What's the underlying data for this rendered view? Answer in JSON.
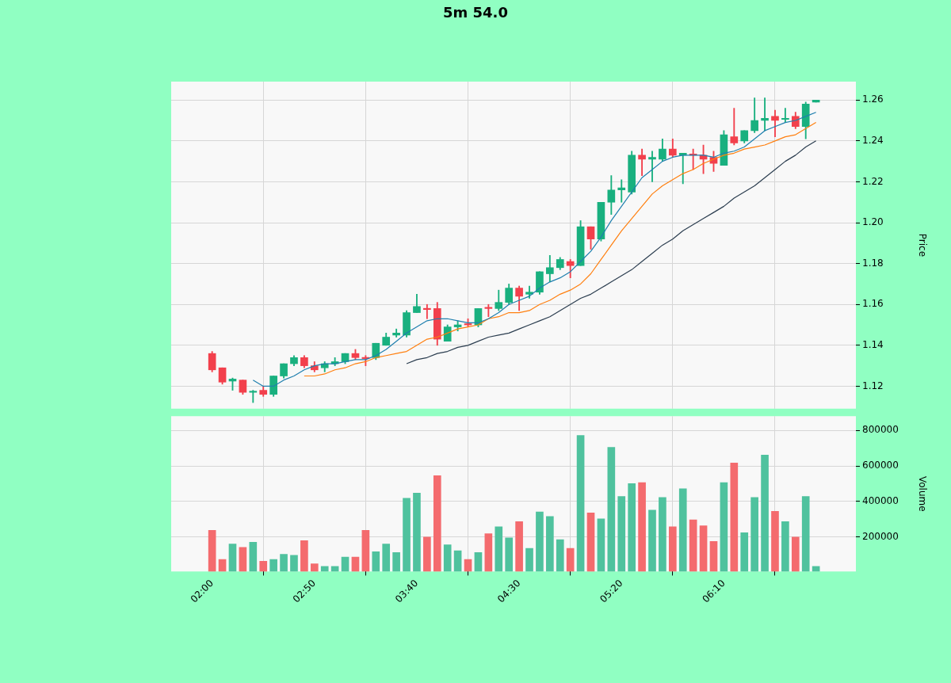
{
  "chart_data": [
    {
      "type": "candlestick",
      "title": "5m 54.0",
      "ylabel": "Price",
      "grid": true,
      "tick_labels": "y",
      "categories": [
        null,
        null,
        null,
        null,
        null,
        null,
        null,
        null,
        null,
        null,
        null,
        null,
        null,
        null,
        null,
        null,
        null,
        null,
        null,
        null,
        null,
        null,
        null,
        null,
        null,
        null,
        null,
        null,
        null,
        null,
        null,
        null,
        null,
        null,
        null,
        null,
        null,
        null,
        null,
        null,
        null,
        null,
        null,
        null,
        null,
        null,
        null,
        null,
        null,
        null,
        null,
        null,
        null,
        null,
        null,
        null,
        null,
        null,
        null,
        null
      ],
      "ylim": [
        1.109,
        1.269
      ],
      "yticks": [
        1.12,
        1.14,
        1.16,
        1.18,
        {
          "value": 1.2,
          "label": "1.20"
        },
        1.22,
        1.24,
        1.26
      ],
      "series": [
        {
          "type": "line",
          "color": "#1f7fae",
          "values": [
            null,
            null,
            null,
            null,
            1.123,
            1.12,
            1.12,
            1.123,
            1.125,
            1.128,
            1.13,
            1.131,
            1.131,
            1.132,
            1.133,
            1.133,
            1.135,
            1.138,
            1.142,
            1.146,
            1.149,
            1.152,
            1.153,
            1.153,
            1.152,
            1.151,
            1.151,
            1.153,
            1.156,
            1.16,
            1.162,
            1.164,
            1.168,
            1.171,
            1.173,
            1.176,
            1.181,
            1.186,
            1.193,
            1.201,
            1.208,
            1.215,
            1.222,
            1.226,
            1.23,
            1.232,
            1.233,
            1.233,
            1.233,
            1.232,
            1.234,
            1.235,
            1.237,
            1.241,
            1.245,
            1.247,
            1.249,
            1.25,
            1.252,
            1.254
          ]
        },
        {
          "type": "line",
          "color": "#ff7f0e",
          "values": [
            null,
            null,
            null,
            null,
            null,
            null,
            null,
            null,
            null,
            1.125,
            1.125,
            1.126,
            1.128,
            1.129,
            1.131,
            1.132,
            1.134,
            1.135,
            1.136,
            1.137,
            1.14,
            1.143,
            1.144,
            1.146,
            1.148,
            1.149,
            1.15,
            1.153,
            1.154,
            1.156,
            1.156,
            1.157,
            1.16,
            1.162,
            1.165,
            1.167,
            1.17,
            1.175,
            1.182,
            1.189,
            1.196,
            1.202,
            1.208,
            1.214,
            1.218,
            1.221,
            1.224,
            1.226,
            1.229,
            1.231,
            1.233,
            1.234,
            1.236,
            1.237,
            1.238,
            1.24,
            1.242,
            1.243,
            1.246,
            1.249
          ]
        },
        {
          "type": "line",
          "color": "#2c3e50",
          "values": [
            null,
            null,
            null,
            null,
            null,
            null,
            null,
            null,
            null,
            null,
            null,
            null,
            null,
            null,
            null,
            null,
            null,
            null,
            null,
            1.131,
            1.133,
            1.134,
            1.136,
            1.137,
            1.139,
            1.14,
            1.142,
            1.144,
            1.145,
            1.146,
            1.148,
            1.15,
            1.152,
            1.154,
            1.157,
            1.16,
            1.163,
            1.165,
            1.168,
            1.171,
            1.174,
            1.177,
            1.181,
            1.185,
            1.189,
            1.192,
            1.196,
            1.199,
            1.202,
            1.205,
            1.208,
            1.212,
            1.215,
            1.218,
            1.222,
            1.226,
            1.23,
            1.233,
            1.237,
            1.24
          ]
        },
        {
          "type": "candlestick",
          "ohlc": [
            [
              1.136,
              1.137,
              1.127,
              1.128
            ],
            [
              1.129,
              1.129,
              1.121,
              1.122
            ],
            [
              1.1225,
              1.124,
              1.118,
              1.1235
            ],
            [
              1.123,
              1.123,
              1.116,
              1.117
            ],
            [
              1.117,
              1.118,
              1.112,
              1.1175
            ],
            [
              1.118,
              1.12,
              1.115,
              1.116
            ],
            [
              1.116,
              1.125,
              1.115,
              1.125
            ],
            [
              1.125,
              1.131,
              1.124,
              1.131
            ],
            [
              1.131,
              1.135,
              1.13,
              1.134
            ],
            [
              1.134,
              1.135,
              1.129,
              1.13
            ],
            [
              1.13,
              1.132,
              1.127,
              1.128
            ],
            [
              1.129,
              1.132,
              1.127,
              1.131
            ],
            [
              1.131,
              1.134,
              1.13,
              1.132
            ],
            [
              1.132,
              1.136,
              1.131,
              1.136
            ],
            [
              1.136,
              1.138,
              1.133,
              1.134
            ],
            [
              1.134,
              1.135,
              1.13,
              1.1335
            ],
            [
              1.134,
              1.141,
              1.133,
              1.141
            ],
            [
              1.14,
              1.146,
              1.14,
              1.144
            ],
            [
              1.145,
              1.148,
              1.144,
              1.146
            ],
            [
              1.145,
              1.157,
              1.144,
              1.156
            ],
            [
              1.156,
              1.165,
              1.156,
              1.159
            ],
            [
              1.158,
              1.16,
              1.153,
              1.1575
            ],
            [
              1.158,
              1.161,
              1.14,
              1.143
            ],
            [
              1.142,
              1.15,
              1.142,
              1.149
            ],
            [
              1.149,
              1.152,
              1.147,
              1.15
            ],
            [
              1.1505,
              1.153,
              1.149,
              1.15
            ],
            [
              1.15,
              1.158,
              1.149,
              1.158
            ],
            [
              1.1585,
              1.16,
              1.154,
              1.158
            ],
            [
              1.158,
              1.167,
              1.157,
              1.161
            ],
            [
              1.161,
              1.17,
              1.16,
              1.168
            ],
            [
              1.168,
              1.169,
              1.157,
              1.164
            ],
            [
              1.165,
              1.169,
              1.163,
              1.166
            ],
            [
              1.166,
              1.176,
              1.165,
              1.176
            ],
            [
              1.175,
              1.184,
              1.171,
              1.178
            ],
            [
              1.178,
              1.183,
              1.177,
              1.182
            ],
            [
              1.181,
              1.182,
              1.173,
              1.179
            ],
            [
              1.179,
              1.201,
              1.179,
              1.198
            ],
            [
              1.198,
              1.198,
              1.187,
              1.192
            ],
            [
              1.192,
              1.21,
              1.191,
              1.21
            ],
            [
              1.21,
              1.223,
              1.204,
              1.216
            ],
            [
              1.216,
              1.221,
              1.21,
              1.217
            ],
            [
              1.215,
              1.235,
              1.214,
              1.233
            ],
            [
              1.233,
              1.236,
              1.223,
              1.231
            ],
            [
              1.231,
              1.235,
              1.22,
              1.232
            ],
            [
              1.231,
              1.241,
              1.23,
              1.236
            ],
            [
              1.236,
              1.241,
              1.232,
              1.233
            ],
            [
              1.233,
              1.234,
              1.219,
              1.234
            ],
            [
              1.2333,
              1.236,
              1.226,
              1.233
            ],
            [
              1.233,
              1.238,
              1.224,
              1.231
            ],
            [
              1.232,
              1.235,
              1.225,
              1.229
            ],
            [
              1.228,
              1.245,
              1.228,
              1.243
            ],
            [
              1.242,
              1.256,
              1.238,
              1.239
            ],
            [
              1.24,
              1.245,
              1.239,
              1.245
            ],
            [
              1.245,
              1.261,
              1.244,
              1.25
            ],
            [
              1.25,
              1.261,
              1.245,
              1.251
            ],
            [
              1.252,
              1.255,
              1.242,
              1.25
            ],
            [
              1.2505,
              1.256,
              1.249,
              1.251
            ],
            [
              1.252,
              1.254,
              1.246,
              1.247
            ],
            [
              1.247,
              1.259,
              1.241,
              1.258
            ],
            [
              1.259,
              1.26,
              1.259,
              1.26
            ]
          ],
          "colors": [
            "#f2404c",
            "#f2404c",
            "#19b07f",
            "#f2404c",
            "#19b07f",
            "#f2404c",
            "#19b07f",
            "#19b07f",
            "#19b07f",
            "#f2404c",
            "#f2404c",
            "#19b07f",
            "#19b07f",
            "#19b07f",
            "#f2404c",
            "#f2404c",
            "#19b07f",
            "#19b07f",
            "#19b07f",
            "#19b07f",
            "#19b07f",
            "#f2404c",
            "#f2404c",
            "#19b07f",
            "#19b07f",
            "#f2404c",
            "#19b07f",
            "#f2404c",
            "#19b07f",
            "#19b07f",
            "#f2404c",
            "#19b07f",
            "#19b07f",
            "#19b07f",
            "#19b07f",
            "#f2404c",
            "#19b07f",
            "#f2404c",
            "#19b07f",
            "#19b07f",
            "#19b07f",
            "#19b07f",
            "#f2404c",
            "#19b07f",
            "#19b07f",
            "#f2404c",
            "#19b07f",
            "#f2404c",
            "#f2404c",
            "#f2404c",
            "#19b07f",
            "#f2404c",
            "#19b07f",
            "#19b07f",
            "#19b07f",
            "#f2404c",
            "#19b07f",
            "#f2404c",
            "#19b07f",
            "#19b07f"
          ]
        }
      ]
    },
    {
      "type": "bar",
      "ylabel": "Volume",
      "grid": true,
      "categories": [
        "02:00",
        null,
        null,
        null,
        null,
        null,
        null,
        null,
        null,
        null,
        "02:50",
        null,
        null,
        null,
        null,
        null,
        null,
        null,
        null,
        null,
        "03:40",
        null,
        null,
        null,
        null,
        null,
        null,
        null,
        null,
        null,
        "04:30",
        null,
        null,
        null,
        null,
        null,
        null,
        null,
        null,
        null,
        "05:20",
        null,
        null,
        null,
        null,
        null,
        null,
        null,
        null,
        null,
        "06:10",
        null,
        null,
        null,
        null,
        null,
        null,
        null,
        null,
        null
      ],
      "ylim": [
        6000,
        880000
      ],
      "yticks": [
        200000,
        400000,
        600000,
        800000
      ],
      "values": [
        238000,
        74000,
        161000,
        142000,
        171000,
        64000,
        74000,
        103000,
        98000,
        180000,
        50000,
        35000,
        35000,
        88000,
        88000,
        238000,
        118000,
        161000,
        113000,
        418000,
        447000,
        200000,
        545000,
        157000,
        123000,
        74000,
        113000,
        219000,
        258000,
        195000,
        287000,
        137000,
        341000,
        316000,
        186000,
        137000,
        771000,
        336000,
        302000,
        704000,
        428000,
        501000,
        506000,
        351000,
        423000,
        258000,
        472000,
        297000,
        263000,
        176000,
        506000,
        617000,
        225000,
        423000,
        661000,
        345000,
        287000,
        200000,
        428000,
        35000
      ],
      "colors": [
        "#f46b6e",
        "#f46b6e",
        "#4fc29e",
        "#f46b6e",
        "#4fc29e",
        "#f46b6e",
        "#4fc29e",
        "#4fc29e",
        "#4fc29e",
        "#f46b6e",
        "#f46b6e",
        "#4fc29e",
        "#4fc29e",
        "#4fc29e",
        "#f46b6e",
        "#f46b6e",
        "#4fc29e",
        "#4fc29e",
        "#4fc29e",
        "#4fc29e",
        "#4fc29e",
        "#f46b6e",
        "#f46b6e",
        "#4fc29e",
        "#4fc29e",
        "#f46b6e",
        "#4fc29e",
        "#f46b6e",
        "#4fc29e",
        "#4fc29e",
        "#f46b6e",
        "#4fc29e",
        "#4fc29e",
        "#4fc29e",
        "#4fc29e",
        "#f46b6e",
        "#4fc29e",
        "#f46b6e",
        "#4fc29e",
        "#4fc29e",
        "#4fc29e",
        "#4fc29e",
        "#f46b6e",
        "#4fc29e",
        "#4fc29e",
        "#f46b6e",
        "#4fc29e",
        "#f46b6e",
        "#f46b6e",
        "#f46b6e",
        "#4fc29e",
        "#f46b6e",
        "#4fc29e",
        "#4fc29e",
        "#4fc29e",
        "#f46b6e",
        "#4fc29e",
        "#f46b6e",
        "#4fc29e",
        "#4fc29e"
      ]
    }
  ]
}
